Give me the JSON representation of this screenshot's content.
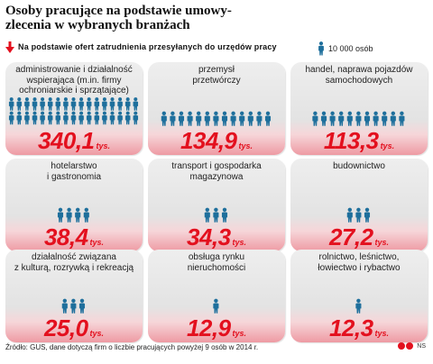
{
  "title": "Osoby pracujące na podstawie umowy-zlecenia w wybranych branżach",
  "subtitle": "Na podstawie ofert zatrudnienia przesyłanych do urzędów pracy",
  "legend": "10 000 osób",
  "unit": "tys.",
  "source": "Źródło: GUS, dane dotyczą firm o liczbie pracujących powyżej 9 osób w 2014 r.",
  "brand": "NS",
  "colors": {
    "accent": "#e3101e",
    "person": "#1e6f9c",
    "card": "#e6e6e6"
  },
  "chart_data": {
    "type": "pictograph",
    "unit": "tys.",
    "categories": [
      "administrowanie i działalność wspierająca (m.in. firmy ochroniarskie i sprzątające)",
      "przemysł przetwórczy",
      "handel, naprawa pojazdów samochodowych",
      "hotelarstwo i gastronomia",
      "transport i gospodarka magazynowa",
      "budownictwo",
      "działalność związana z kulturą, rozrywką i rekreacją",
      "obsługa rynku nieruchomości",
      "rolnictwo, leśnictwo, łowiectwo i rybactwo"
    ],
    "values": [
      340.1,
      134.9,
      113.3,
      38.4,
      34.3,
      27.2,
      25.0,
      12.9,
      12.3
    ],
    "value_labels": [
      "340,1",
      "134,9",
      "113,3",
      "38,4",
      "34,3",
      "27,2",
      "25,0",
      "12,9",
      "12,3"
    ]
  },
  "cards": [
    {
      "label": "administrowanie i działalność\nwspierająca (m.in. firmy\nochroniarskie i sprzątające)",
      "value": "340,1"
    },
    {
      "label": "przemysł\nprzetwórczy",
      "value": "134,9"
    },
    {
      "label": "handel, naprawa pojazdów\nsamochodowych",
      "value": "113,3"
    },
    {
      "label": "hotelarstwo\ni gastronomia",
      "value": "38,4"
    },
    {
      "label": "transport i gospodarka\nmagazynowa",
      "value": "34,3"
    },
    {
      "label": "budownictwo",
      "value": "27,2"
    },
    {
      "label": "działalność związana\nz kulturą, rozrywką i rekreacją",
      "value": "25,0"
    },
    {
      "label": "obsługa rynku\nnieruchomości",
      "value": "12,9"
    },
    {
      "label": "rolnictwo, leśnictwo,\nłowiectwo i rybactwo",
      "value": "12,3"
    }
  ]
}
